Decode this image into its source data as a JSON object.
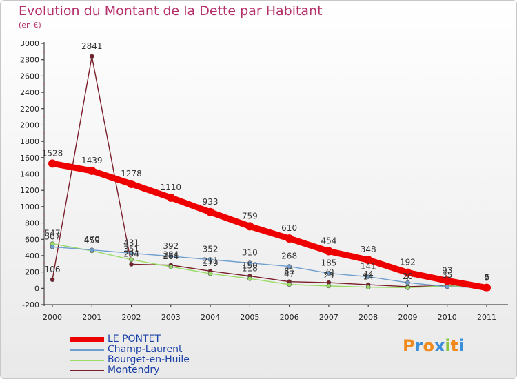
{
  "header": {
    "title": "Evolution du Montant de la Dette par Habitant",
    "subtitle": "(en €)"
  },
  "brand": {
    "letters": [
      "P",
      "r",
      "o",
      "x",
      "i",
      "t",
      "i"
    ],
    "colors": [
      "#f08a1c",
      "#3d8fd8",
      "#f08a1c",
      "#3d8fd8",
      "#8cc63f",
      "#f08a1c",
      "#3d8fd8"
    ]
  },
  "chart_data": {
    "type": "line",
    "x": [
      "2000",
      "2001",
      "2002",
      "2003",
      "2004",
      "2005",
      "2006",
      "2007",
      "2008",
      "2009",
      "2010",
      "2011"
    ],
    "ylim": [
      -200,
      3000
    ],
    "yticks": [
      "-200",
      "0",
      "200",
      "400",
      "600",
      "800",
      "1000",
      "1200",
      "1400",
      "1600",
      "1800",
      "2000",
      "2200",
      "2400",
      "2600",
      "2800",
      "3000"
    ],
    "grid": false,
    "legend_position": "bottom-left",
    "series": [
      {
        "name": "LE PONTET",
        "color": "#ee0000",
        "values": [
          1528,
          1439,
          1278,
          1110,
          933,
          759,
          610,
          454,
          348,
          192,
          93,
          6
        ],
        "labels": [
          "1528",
          "1439",
          "1278",
          "1110",
          "933",
          "759",
          "610",
          "454",
          "348",
          "192",
          "93",
          "6"
        ]
      },
      {
        "name": "Champ-Laurent",
        "color": "#6f9fcf",
        "values": [
          507,
          470,
          431,
          392,
          352,
          310,
          268,
          185,
          141,
          70,
          20,
          7
        ],
        "labels": [
          "507",
          "470",
          "431",
          "392",
          "352",
          "310",
          "268",
          "185",
          "141",
          "",
          "",
          "7"
        ]
      },
      {
        "name": "Bourget-en-Huile",
        "color": "#99dd66",
        "values": [
          547,
          459,
          351,
          264,
          179,
          118,
          47,
          29,
          14,
          7,
          30,
          5
        ],
        "labels": [
          "547",
          "459",
          "351",
          "264",
          "179",
          "118",
          "47",
          "29",
          "14",
          "7",
          "",
          ""
        ]
      },
      {
        "name": "Montendry",
        "color": "#7a1e2a",
        "values": [
          106,
          2841,
          294,
          284,
          211,
          150,
          81,
          70,
          44,
          20,
          35,
          0
        ],
        "labels": [
          "106",
          "2841",
          "294",
          "284",
          "211",
          "150",
          "81",
          "70",
          "44",
          "20",
          "35",
          "0"
        ]
      }
    ]
  }
}
